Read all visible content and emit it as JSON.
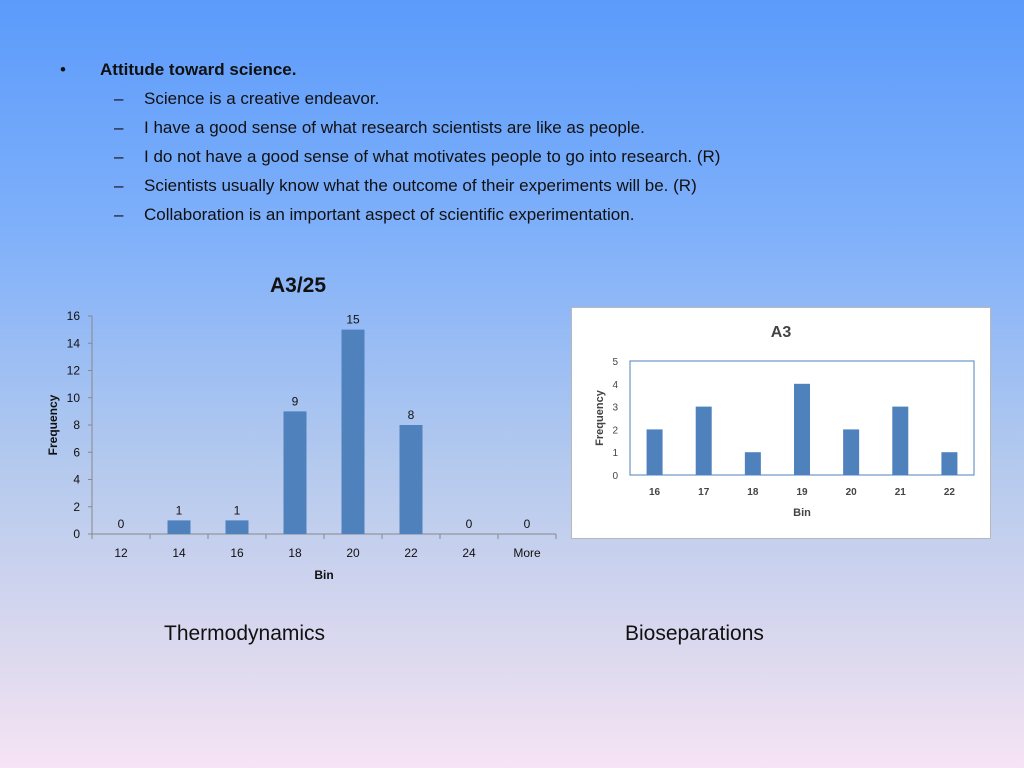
{
  "bullets": {
    "heading": "Attitude toward science.",
    "items": [
      "Science is a creative endeavor.",
      "I have a good sense of what research scientists are like as people.",
      "I do not have a good sense of what motivates people to go into research. (R)",
      "Scientists usually know what the outcome of their experiments will be. (R)",
      "Collaboration is an important aspect of scientific experimentation."
    ]
  },
  "captions": {
    "left": "Thermodynamics",
    "right": "Bioseparations"
  },
  "colors": {
    "bar": "#4f81bd",
    "axis": "#888888"
  },
  "chart_data": [
    {
      "type": "bar",
      "title": "A3/25",
      "xlabel": "Bin",
      "ylabel": "Frequency",
      "categories": [
        "12",
        "14",
        "16",
        "18",
        "20",
        "22",
        "24",
        "More"
      ],
      "values": [
        0,
        1,
        1,
        9,
        15,
        8,
        0,
        0
      ],
      "ylim": [
        0,
        16
      ],
      "yticks": [
        0,
        2,
        4,
        6,
        8,
        10,
        12,
        14,
        16
      ],
      "data_labels": true,
      "grid": false
    },
    {
      "type": "bar",
      "title": "A3",
      "xlabel": "Bin",
      "ylabel": "Frequency",
      "categories": [
        "16",
        "17",
        "18",
        "19",
        "20",
        "21",
        "22"
      ],
      "values": [
        2,
        3,
        1,
        4,
        2,
        3,
        1
      ],
      "ylim": [
        0,
        5
      ],
      "yticks": [
        0,
        1,
        2,
        3,
        4,
        5
      ],
      "data_labels": false,
      "grid": false
    }
  ]
}
